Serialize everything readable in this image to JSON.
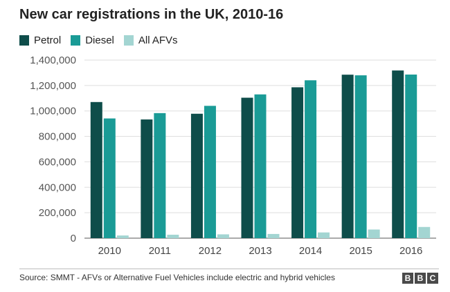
{
  "chart_data": {
    "type": "bar",
    "title": "New car registrations in the UK, 2010-16",
    "categories": [
      "2010",
      "2011",
      "2012",
      "2013",
      "2014",
      "2015",
      "2016"
    ],
    "series": [
      {
        "name": "Petrol",
        "color": "#0e4d4a",
        "values": [
          1070000,
          933000,
          978000,
          1104000,
          1186000,
          1285000,
          1318000
        ]
      },
      {
        "name": "Diesel",
        "color": "#1a9b96",
        "values": [
          941000,
          983000,
          1040000,
          1130000,
          1241000,
          1280000,
          1286000
        ]
      },
      {
        "name": "All AFVs",
        "color": "#a3d5d2",
        "values": [
          21000,
          27000,
          30000,
          33000,
          45000,
          68000,
          88000
        ]
      }
    ],
    "yticks": [
      "0",
      "200,000",
      "400,000",
      "600,000",
      "800,000",
      "1,000,000",
      "1,200,000",
      "1,400,000"
    ],
    "ylim": [
      0,
      1400000
    ],
    "grid": true,
    "legend": "top-left"
  },
  "footer": {
    "source": "Source: SMMT - AFVs or Alternative Fuel Vehicles include electric and hybrid vehicles",
    "logo": [
      "B",
      "B",
      "C"
    ]
  }
}
